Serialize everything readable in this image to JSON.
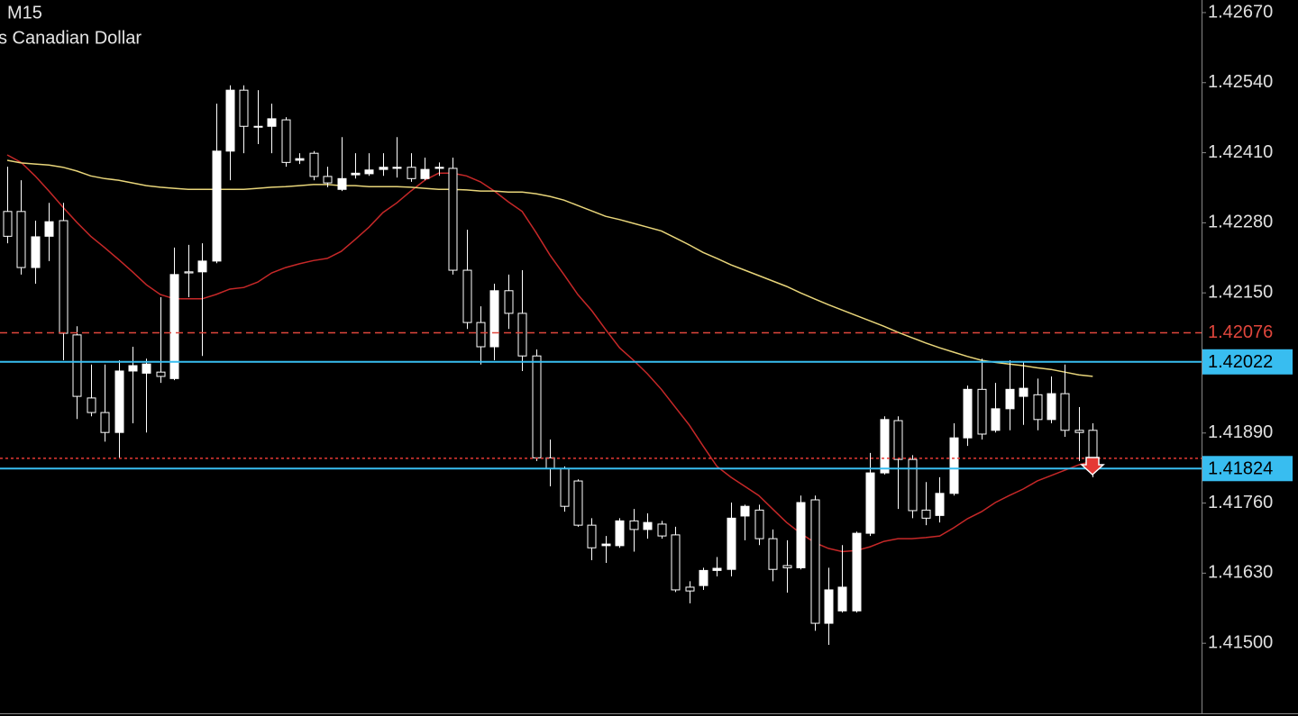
{
  "chart_data": {
    "type": "candlestick",
    "title": "M15",
    "subtitle": "s Canadian Dollar",
    "ylim": [
      1.4137,
      1.4269
    ],
    "yticks": [
      {
        "value": 1.4267,
        "label": "1.42670"
      },
      {
        "value": 1.4254,
        "label": "1.42540"
      },
      {
        "value": 1.4241,
        "label": "1.42410"
      },
      {
        "value": 1.4228,
        "label": "1.42280"
      },
      {
        "value": 1.4215,
        "label": "1.42150"
      },
      {
        "value": 1.4189,
        "label": "1.41890"
      },
      {
        "value": 1.4176,
        "label": "1.41760"
      },
      {
        "value": 1.4163,
        "label": "1.41630"
      },
      {
        "value": 1.415,
        "label": "1.41500"
      }
    ],
    "up_color": "#ffffff",
    "down_color": "#000000",
    "wick_color": "#ffffff",
    "open": [
      1.42301,
      1.42301,
      1.42197,
      1.42255,
      1.42284,
      1.42072,
      1.41955,
      1.41928,
      1.41891,
      1.42005,
      1.42001,
      1.42003,
      1.41991,
      1.42189,
      1.42189,
      1.42209,
      1.42413,
      1.42526,
      1.42459,
      1.42459,
      1.42471,
      1.42396,
      1.42409,
      1.42366,
      1.42342,
      1.42369,
      1.42371,
      1.42379,
      1.42381,
      1.42383,
      1.42362,
      1.42381,
      1.42381,
      1.42192,
      1.42095,
      1.4205,
      1.42154,
      1.42112,
      1.42033,
      1.41844,
      1.41824,
      1.41801,
      1.41719,
      1.41681,
      1.41681,
      1.41727,
      1.41711,
      1.41721,
      1.41701,
      1.41604,
      1.41607,
      1.41635,
      1.41637,
      1.41736,
      1.41747,
      1.41694,
      1.41644,
      1.4164,
      1.41766,
      1.41537,
      1.4156,
      1.4156,
      1.41704,
      1.41816,
      1.41913,
      1.41841,
      1.41747,
      1.41737,
      1.41778,
      1.41881,
      1.41971,
      1.41895,
      1.41935,
      1.41958,
      1.41961,
      1.41915,
      1.41963,
      1.41895,
      1.41895
    ],
    "high": [
      1.42384,
      1.42359,
      1.42284,
      1.42317,
      1.42317,
      1.42088,
      1.42017,
      1.42017,
      1.42025,
      1.4205,
      1.42028,
      1.42142,
      1.42234,
      1.42239,
      1.42242,
      1.42501,
      1.42535,
      1.42535,
      1.42526,
      1.42501,
      1.42476,
      1.42409,
      1.42413,
      1.42384,
      1.42439,
      1.42409,
      1.42409,
      1.42409,
      1.42439,
      1.42409,
      1.42401,
      1.42392,
      1.42401,
      1.42267,
      1.42125,
      1.42167,
      1.42184,
      1.42192,
      1.42045,
      1.41878,
      1.41828,
      1.41804,
      1.41732,
      1.41699,
      1.41732,
      1.41749,
      1.41741,
      1.41727,
      1.41716,
      1.41615,
      1.4164,
      1.4166,
      1.41761,
      1.41757,
      1.41757,
      1.41711,
      1.41691,
      1.41774,
      1.41774,
      1.4164,
      1.41682,
      1.41707,
      1.41853,
      1.41921,
      1.41921,
      1.41849,
      1.41799,
      1.41808,
      1.41908,
      1.41978,
      1.42028,
      1.41983,
      1.42025,
      1.42021,
      1.41991,
      1.41995,
      1.42017,
      1.41938,
      1.41908
    ],
    "low": [
      1.42242,
      1.42184,
      1.42167,
      1.42209,
      1.42025,
      1.41916,
      1.41921,
      1.41874,
      1.41844,
      1.41908,
      1.41891,
      1.41983,
      1.41988,
      1.42142,
      1.42033,
      1.42205,
      1.42359,
      1.42409,
      1.42426,
      1.42409,
      1.42384,
      1.42389,
      1.42359,
      1.42346,
      1.42339,
      1.42362,
      1.42367,
      1.42367,
      1.42364,
      1.42356,
      1.42359,
      1.42367,
      1.42184,
      1.42083,
      1.42017,
      1.42025,
      1.42083,
      1.42005,
      1.41838,
      1.41791,
      1.41744,
      1.41716,
      1.41654,
      1.41649,
      1.41677,
      1.4167,
      1.41694,
      1.41694,
      1.41595,
      1.41574,
      1.41599,
      1.41624,
      1.41624,
      1.41691,
      1.41682,
      1.41615,
      1.41594,
      1.41637,
      1.41523,
      1.41497,
      1.41557,
      1.41557,
      1.41699,
      1.41813,
      1.41749,
      1.41732,
      1.41719,
      1.41724,
      1.41774,
      1.41866,
      1.41878,
      1.41891,
      1.41895,
      1.41905,
      1.41895,
      1.41908,
      1.41883,
      1.41838,
      1.41808
    ],
    "close": [
      1.42255,
      1.42197,
      1.42254,
      1.42282,
      1.42075,
      1.41958,
      1.41928,
      1.41891,
      1.42005,
      1.42015,
      1.42018,
      1.41995,
      1.42184,
      1.42187,
      1.42209,
      1.42413,
      1.42526,
      1.42459,
      1.42458,
      1.42473,
      1.42392,
      1.42399,
      1.42366,
      1.42354,
      1.42362,
      1.42372,
      1.42378,
      1.42383,
      1.42383,
      1.42362,
      1.42379,
      1.42383,
      1.42192,
      1.42095,
      1.4205,
      1.42154,
      1.42112,
      1.42033,
      1.41844,
      1.41824,
      1.41754,
      1.41719,
      1.41677,
      1.41684,
      1.41727,
      1.41711,
      1.41724,
      1.41699,
      1.41599,
      1.41597,
      1.41635,
      1.41639,
      1.41732,
      1.41754,
      1.41694,
      1.41637,
      1.4164,
      1.41761,
      1.41537,
      1.41599,
      1.41604,
      1.41704,
      1.41816,
      1.41915,
      1.41841,
      1.41746,
      1.41732,
      1.41778,
      1.41881,
      1.41971,
      1.41888,
      1.41935,
      1.41971,
      1.41973,
      1.41915,
      1.41963,
      1.41895,
      1.41891,
      1.41824
    ],
    "series": [
      {
        "color": "#c62828",
        "values": [
          1.42406,
          1.42392,
          1.42367,
          1.42339,
          1.42309,
          1.42281,
          1.42255,
          1.42234,
          1.42212,
          1.42189,
          1.42165,
          1.42147,
          1.42139,
          1.42139,
          1.42139,
          1.42147,
          1.42157,
          1.4216,
          1.4217,
          1.42187,
          1.42197,
          1.42204,
          1.4221,
          1.42214,
          1.42227,
          1.42249,
          1.42272,
          1.42299,
          1.42317,
          1.42339,
          1.42359,
          1.42372,
          1.42372,
          1.42367,
          1.42356,
          1.42339,
          1.42319,
          1.42301,
          1.42262,
          1.4222,
          1.42184,
          1.42147,
          1.42117,
          1.42082,
          1.42048,
          1.42025,
          1.42,
          1.41971,
          1.41938,
          1.41905,
          1.41866,
          1.41828,
          1.41808,
          1.41791,
          1.41774,
          1.41749,
          1.41724,
          1.41704,
          1.41687,
          1.41676,
          1.4167,
          1.41672,
          1.41679,
          1.41689,
          1.41694,
          1.41694,
          1.41696,
          1.41699,
          1.41714,
          1.41731,
          1.41744,
          1.41761,
          1.41774,
          1.41786,
          1.41801,
          1.41811,
          1.41821,
          1.41831,
          1.41838
        ]
      },
      {
        "color": "#e8d57a",
        "values": [
          1.42396,
          1.42391,
          1.42389,
          1.42387,
          1.42383,
          1.42376,
          1.42367,
          1.42362,
          1.42359,
          1.42354,
          1.42349,
          1.42346,
          1.42344,
          1.42342,
          1.42342,
          1.42342,
          1.42342,
          1.42342,
          1.42344,
          1.42346,
          1.42347,
          1.42349,
          1.42351,
          1.42351,
          1.42349,
          1.42349,
          1.42347,
          1.42347,
          1.42347,
          1.42346,
          1.42344,
          1.42342,
          1.42342,
          1.42341,
          1.42339,
          1.42339,
          1.42337,
          1.42337,
          1.42334,
          1.42329,
          1.42322,
          1.42312,
          1.42302,
          1.42292,
          1.42286,
          1.42279,
          1.42272,
          1.42265,
          1.42252,
          1.42239,
          1.42225,
          1.42214,
          1.42202,
          1.42192,
          1.42182,
          1.42172,
          1.42162,
          1.4215,
          1.42139,
          1.42128,
          1.42118,
          1.42108,
          1.42098,
          1.42088,
          1.42077,
          1.42067,
          1.42057,
          1.42048,
          1.4204,
          1.42032,
          1.42025,
          1.42021,
          1.42018,
          1.42015,
          1.42011,
          1.42008,
          1.42003,
          1.41998,
          1.41995
        ]
      }
    ],
    "price_lines": [
      {
        "value": 1.42076,
        "color": "#e0463c",
        "style": "dashed",
        "boxed": false,
        "show_label": true
      },
      {
        "value": 1.42022,
        "color": "#38bdf0",
        "style": "solid",
        "boxed": true,
        "show_label": true
      },
      {
        "value": 1.41843,
        "color": "#e53935",
        "style": "dotted",
        "boxed": false,
        "show_label": false
      },
      {
        "value": 1.41824,
        "color": "#38bdf0",
        "style": "solid",
        "boxed": true,
        "show_label": true
      }
    ]
  }
}
